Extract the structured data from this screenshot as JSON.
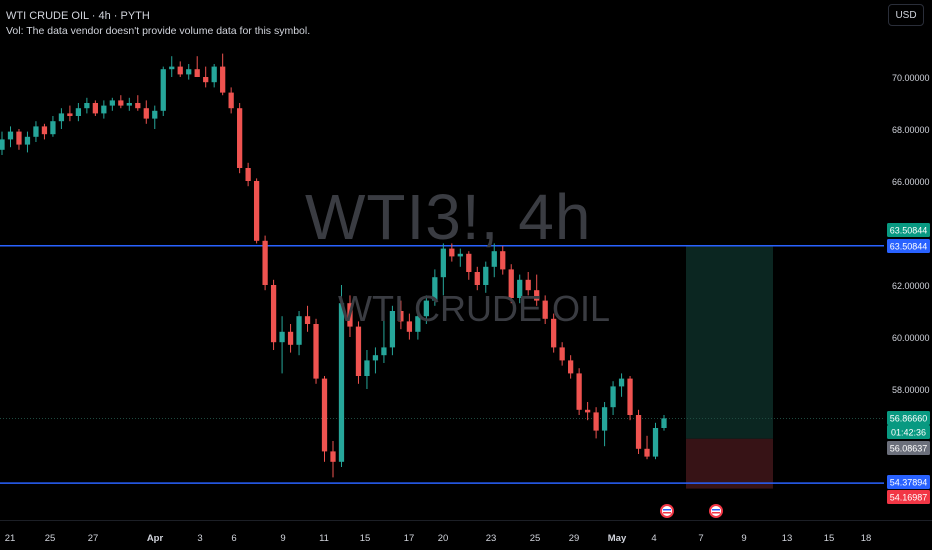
{
  "header": {
    "symbol_line": "WTI CRUDE OIL · 4h · PYTH",
    "volume_note": "Vol: The data vendor doesn't provide volume data for this symbol."
  },
  "watermark": {
    "ticker": "WTI3!, 4h",
    "name": "WTI CRUDE OIL"
  },
  "currency_button": "USD",
  "colors": {
    "up": "#26a69a",
    "down": "#ef5350",
    "hline": "#2962ff",
    "background": "#000000"
  },
  "chart_data": {
    "type": "candlestick",
    "y_axis_labels": [
      "70.00000",
      "68.00000",
      "66.00000",
      "62.00000",
      "60.00000",
      "58.00000"
    ],
    "x_axis_labels": [
      "21",
      "25",
      "27",
      "Apr",
      "3",
      "6",
      "9",
      "11",
      "15",
      "17",
      "20",
      "23",
      "25",
      "29",
      "May",
      "4",
      "7",
      "9",
      "13",
      "15",
      "18"
    ],
    "ylim": [
      52.6,
      72.1
    ],
    "horizontal_lines": [
      63.50844,
      54.37894
    ],
    "position": {
      "type": "long",
      "entry": 56.08637,
      "target": 63.50844,
      "stop": 54.16987
    },
    "price_tags": [
      {
        "label": "63.50844",
        "value": 63.50844,
        "color": "#089981"
      },
      {
        "label": "63.50844",
        "value": 63.50844,
        "color": "#2962ff"
      },
      {
        "label": "56.86660",
        "value": 56.8666,
        "color": "#089981"
      },
      {
        "label": "01:42:36",
        "value": 56.4,
        "color": "#089981"
      },
      {
        "label": "56.08637",
        "value": 56.08637,
        "color": "#6b6f7b"
      },
      {
        "label": "54.37894",
        "value": 54.37894,
        "color": "#2962ff"
      },
      {
        "label": "54.16987",
        "value": 54.16987,
        "color": "#f23645"
      }
    ],
    "last_price": 56.8666,
    "candles": [
      [
        67.2,
        67.9,
        67.0,
        67.6
      ],
      [
        67.6,
        68.1,
        67.3,
        67.9
      ],
      [
        67.9,
        68.0,
        67.2,
        67.4
      ],
      [
        67.4,
        67.9,
        67.1,
        67.7
      ],
      [
        67.7,
        68.3,
        67.5,
        68.1
      ],
      [
        68.1,
        68.2,
        67.6,
        67.8
      ],
      [
        67.8,
        68.5,
        67.7,
        68.3
      ],
      [
        68.3,
        68.8,
        68.0,
        68.6
      ],
      [
        68.6,
        68.9,
        68.3,
        68.5
      ],
      [
        68.5,
        69.0,
        68.3,
        68.8
      ],
      [
        68.8,
        69.2,
        68.6,
        69.0
      ],
      [
        69.0,
        69.1,
        68.5,
        68.6
      ],
      [
        68.6,
        69.1,
        68.4,
        68.9
      ],
      [
        68.9,
        69.2,
        68.7,
        69.1
      ],
      [
        69.1,
        69.3,
        68.8,
        68.9
      ],
      [
        68.9,
        69.2,
        68.7,
        69.0
      ],
      [
        69.0,
        69.3,
        68.7,
        68.8
      ],
      [
        68.8,
        69.1,
        68.2,
        68.4
      ],
      [
        68.4,
        68.9,
        68.0,
        68.7
      ],
      [
        68.7,
        70.4,
        68.5,
        70.3
      ],
      [
        70.3,
        70.8,
        70.0,
        70.4
      ],
      [
        70.4,
        70.6,
        70.0,
        70.1
      ],
      [
        70.1,
        70.5,
        69.9,
        70.3
      ],
      [
        70.3,
        70.8,
        70.0,
        70.0
      ],
      [
        70.0,
        70.4,
        69.6,
        69.8
      ],
      [
        69.8,
        70.5,
        69.6,
        70.4
      ],
      [
        70.4,
        70.9,
        69.3,
        69.4
      ],
      [
        69.4,
        69.6,
        68.6,
        68.8
      ],
      [
        68.8,
        69.0,
        66.3,
        66.5
      ],
      [
        66.5,
        66.7,
        65.8,
        66.0
      ],
      [
        66.0,
        66.1,
        63.6,
        63.7
      ],
      [
        63.7,
        63.9,
        61.8,
        62.0
      ],
      [
        62.0,
        62.2,
        59.5,
        59.8
      ],
      [
        59.8,
        60.8,
        58.6,
        60.2
      ],
      [
        60.2,
        60.5,
        59.4,
        59.7
      ],
      [
        59.7,
        61.0,
        59.3,
        60.8
      ],
      [
        60.8,
        61.2,
        60.2,
        60.5
      ],
      [
        60.5,
        60.7,
        58.2,
        58.4
      ],
      [
        58.4,
        58.5,
        55.2,
        55.6
      ],
      [
        55.6,
        56.0,
        54.6,
        55.2
      ],
      [
        55.2,
        62.0,
        55.0,
        61.3
      ],
      [
        61.3,
        61.6,
        60.0,
        60.4
      ],
      [
        60.4,
        60.6,
        58.2,
        58.5
      ],
      [
        58.5,
        59.5,
        58.0,
        59.1
      ],
      [
        59.1,
        59.6,
        58.6,
        59.3
      ],
      [
        59.3,
        60.7,
        59.0,
        59.6
      ],
      [
        59.6,
        61.2,
        59.3,
        61.0
      ],
      [
        61.0,
        61.4,
        60.3,
        60.6
      ],
      [
        60.6,
        60.9,
        59.9,
        60.2
      ],
      [
        60.2,
        61.0,
        59.9,
        60.8
      ],
      [
        60.8,
        61.6,
        60.5,
        61.4
      ],
      [
        61.4,
        62.6,
        61.2,
        62.3
      ],
      [
        62.3,
        63.6,
        61.6,
        63.4
      ],
      [
        63.4,
        63.6,
        62.9,
        63.1
      ],
      [
        63.1,
        63.4,
        62.7,
        63.2
      ],
      [
        63.2,
        63.3,
        62.2,
        62.5
      ],
      [
        62.5,
        62.7,
        61.8,
        62.0
      ],
      [
        62.0,
        62.9,
        61.7,
        62.7
      ],
      [
        62.7,
        63.6,
        62.3,
        63.3
      ],
      [
        63.3,
        63.5,
        62.4,
        62.6
      ],
      [
        62.6,
        62.8,
        61.3,
        61.5
      ],
      [
        61.5,
        62.4,
        61.3,
        62.2
      ],
      [
        62.2,
        62.5,
        61.6,
        61.8
      ],
      [
        61.8,
        62.4,
        61.2,
        61.4
      ],
      [
        61.4,
        61.6,
        60.5,
        60.7
      ],
      [
        60.7,
        60.9,
        59.4,
        59.6
      ],
      [
        59.6,
        59.8,
        58.9,
        59.1
      ],
      [
        59.1,
        59.3,
        58.4,
        58.6
      ],
      [
        58.6,
        58.8,
        57.0,
        57.2
      ],
      [
        57.2,
        57.5,
        56.8,
        57.1
      ],
      [
        57.1,
        57.3,
        56.1,
        56.4
      ],
      [
        56.4,
        57.5,
        55.8,
        57.3
      ],
      [
        57.3,
        58.3,
        57.0,
        58.1
      ],
      [
        58.1,
        58.6,
        57.7,
        58.4
      ],
      [
        58.4,
        58.5,
        56.8,
        57.0
      ],
      [
        57.0,
        57.2,
        55.5,
        55.7
      ],
      [
        55.7,
        56.2,
        55.3,
        55.4
      ],
      [
        55.4,
        56.7,
        55.3,
        56.5
      ],
      [
        56.5,
        57.0,
        56.4,
        56.87
      ]
    ]
  }
}
